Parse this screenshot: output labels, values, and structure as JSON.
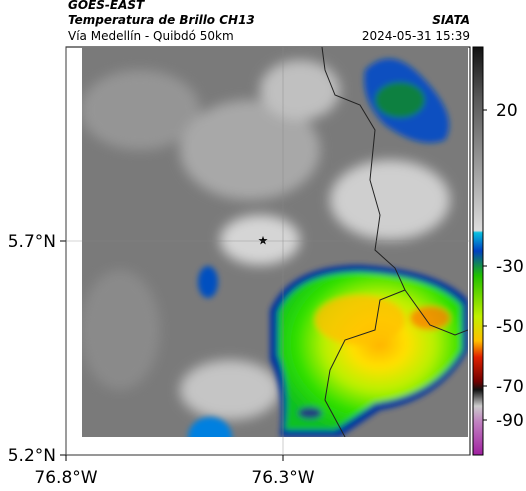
{
  "header": {
    "source": "GOES-EAST",
    "title": "Temperatura de Brillo CH13",
    "org": "SIATA",
    "subtitle": "Vía Medellín - Quibdó 50km",
    "datetime": "2024-05-31 15:39"
  },
  "map": {
    "lat_ticks": [
      {
        "value": 5.7,
        "label": "5.7°N"
      },
      {
        "value": 5.2,
        "label": "5.2°N"
      }
    ],
    "lon_ticks": [
      {
        "value": -76.8,
        "label": "76.8°W"
      },
      {
        "value": -76.3,
        "label": "76.3°W"
      }
    ]
  },
  "colorbar": {
    "ticks": [
      20,
      -30,
      -50,
      -70,
      -90
    ]
  }
}
